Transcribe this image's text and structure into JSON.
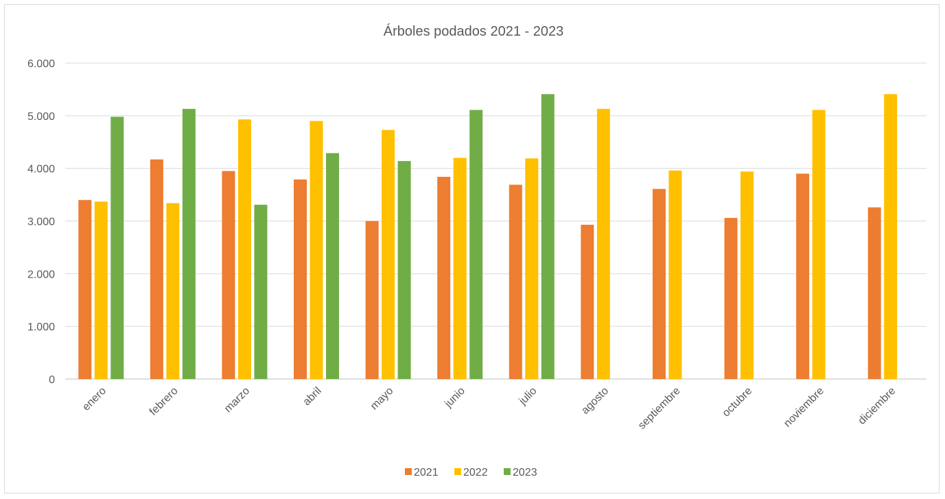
{
  "chart_data": {
    "type": "bar",
    "title": "Árboles podados 2021 - 2023",
    "xlabel": "",
    "ylabel": "",
    "categories": [
      "enero",
      "febrero",
      "marzo",
      "abril",
      "mayo",
      "junio",
      "julio",
      "agosto",
      "septiembre",
      "octubre",
      "noviembre",
      "diciembre"
    ],
    "series": [
      {
        "name": "2021",
        "color": "#ED7D31",
        "values": [
          3400,
          4170,
          3950,
          3790,
          3000,
          3840,
          3690,
          2930,
          3610,
          3060,
          3900,
          3260
        ]
      },
      {
        "name": "2022",
        "color": "#FFC000",
        "values": [
          3370,
          3340,
          4930,
          4900,
          4730,
          4200,
          4190,
          5130,
          3960,
          3940,
          5110,
          5410
        ]
      },
      {
        "name": "2023",
        "color": "#70AD47",
        "values": [
          4980,
          5130,
          3310,
          4290,
          4140,
          5110,
          5410,
          null,
          null,
          null,
          null,
          null
        ]
      }
    ],
    "ylim": [
      0,
      6000
    ],
    "yticks": [
      0,
      1000,
      2000,
      3000,
      4000,
      5000,
      6000
    ],
    "ytick_labels": [
      "0",
      "1.000",
      "2.000",
      "3.000",
      "4.000",
      "5.000",
      "6.000"
    ],
    "grid": true,
    "legend_position": "bottom"
  }
}
